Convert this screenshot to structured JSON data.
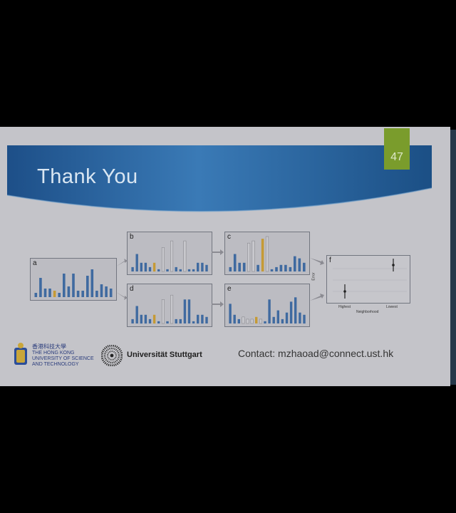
{
  "slide": {
    "title": "Thank You",
    "page_number": "47",
    "contact": "Contact: mzhaoad@connect.ust.hk"
  },
  "colors": {
    "bar": "#3f6aa0",
    "highlight": "#c59a35",
    "ghost": "#c8c8cd",
    "page_box": "#7a9c2c"
  },
  "figure": {
    "panels": [
      {
        "label": "a",
        "values": [
          2,
          9,
          4,
          4,
          3,
          2,
          11,
          5,
          11,
          3,
          3,
          10,
          13,
          3,
          6,
          5,
          4
        ],
        "highlight": [
          4
        ],
        "ghost": []
      },
      {
        "label": "b",
        "values": [
          2,
          8,
          4,
          4,
          2,
          4,
          1,
          11,
          1,
          14,
          2,
          1,
          14,
          1,
          1,
          4,
          4,
          3
        ],
        "highlight": [
          5
        ],
        "ghost": [
          7,
          9,
          12
        ]
      },
      {
        "label": "c",
        "values": [
          2,
          8,
          4,
          4,
          13,
          14,
          3,
          15,
          16,
          1,
          2,
          3,
          3,
          2,
          7,
          6,
          4
        ],
        "highlight": [
          7
        ],
        "ghost": [
          4,
          5,
          7,
          8
        ]
      },
      {
        "label": "d",
        "values": [
          2,
          8,
          4,
          4,
          2,
          4,
          1,
          11,
          1,
          13,
          2,
          2,
          11,
          11,
          1,
          4,
          4,
          3
        ],
        "highlight": [
          5
        ],
        "ghost": [
          7,
          9
        ]
      },
      {
        "label": "e",
        "values": [
          9,
          4,
          2,
          3,
          2,
          2,
          3,
          2,
          1,
          11,
          3,
          6,
          2,
          5,
          10,
          12,
          5,
          4
        ],
        "highlight": [
          6
        ],
        "ghost": [
          3,
          4,
          5,
          6,
          7
        ]
      }
    ],
    "panel_f": {
      "label": "f",
      "xlabel": "Neighborhood",
      "ylabel": "Error",
      "categories": [
        "Highest",
        "Lowest"
      ]
    }
  },
  "logos": {
    "hkust_chinese": "香港科技大學",
    "hkust_line1": "THE HONG KONG",
    "hkust_line2": "UNIVERSITY OF SCIENCE",
    "hkust_line3": "AND TECHNOLOGY",
    "stuttgart": "Universität Stuttgart"
  }
}
